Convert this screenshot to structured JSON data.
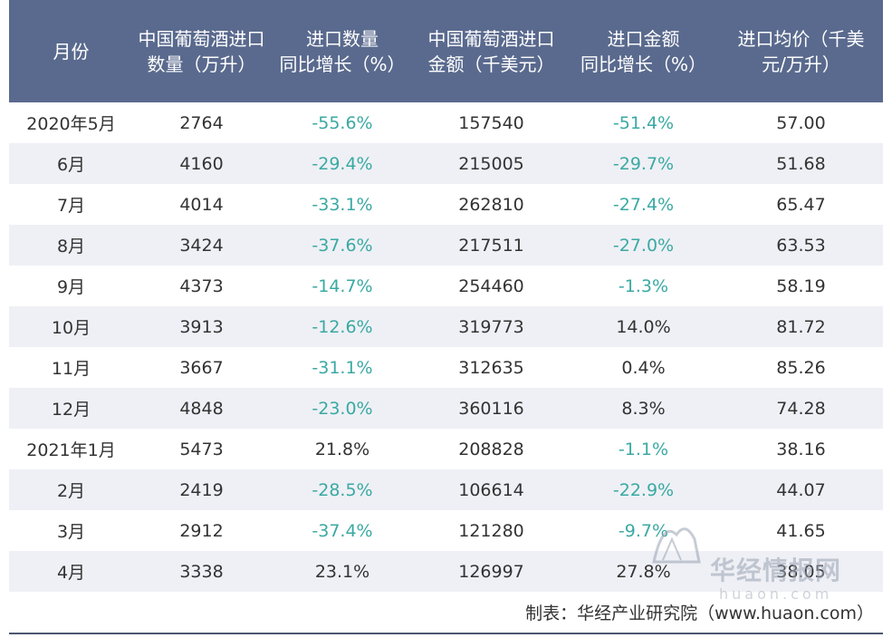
{
  "headers": [
    "月份",
    "中国葡萄酒进口\n数量（万升）",
    "进口数量\n同比增长（%）",
    "中国葡萄酒进口\n金额（千美元）",
    "进口金额\n同比增长（%）",
    "进口均价（千美\n元/万升）"
  ],
  "rows": [
    {
      "month": "2020年5月",
      "qty": "2764",
      "qty_yoy": "-55.6%",
      "amt": "157540",
      "amt_yoy": "-51.4%",
      "price": "57.00"
    },
    {
      "month": "6月",
      "qty": "4160",
      "qty_yoy": "-29.4%",
      "amt": "215005",
      "amt_yoy": "-29.7%",
      "price": "51.68"
    },
    {
      "month": "7月",
      "qty": "4014",
      "qty_yoy": "-33.1%",
      "amt": "262810",
      "amt_yoy": "-27.4%",
      "price": "65.47"
    },
    {
      "month": "8月",
      "qty": "3424",
      "qty_yoy": "-37.6%",
      "amt": "217511",
      "amt_yoy": "-27.0%",
      "price": "63.53"
    },
    {
      "month": "9月",
      "qty": "4373",
      "qty_yoy": "-14.7%",
      "amt": "254460",
      "amt_yoy": "-1.3%",
      "price": "58.19"
    },
    {
      "month": "10月",
      "qty": "3913",
      "qty_yoy": "-12.6%",
      "amt": "319773",
      "amt_yoy": "14.0%",
      "price": "81.72"
    },
    {
      "month": "11月",
      "qty": "3667",
      "qty_yoy": "-31.1%",
      "amt": "312635",
      "amt_yoy": "0.4%",
      "price": "85.26"
    },
    {
      "month": "12月",
      "qty": "4848",
      "qty_yoy": "-23.0%",
      "amt": "360116",
      "amt_yoy": "8.3%",
      "price": "74.28"
    },
    {
      "month": "2021年1月",
      "qty": "5473",
      "qty_yoy": "21.8%",
      "amt": "208828",
      "amt_yoy": "-1.1%",
      "price": "38.16"
    },
    {
      "month": "2月",
      "qty": "2419",
      "qty_yoy": "-28.5%",
      "amt": "106614",
      "amt_yoy": "-22.9%",
      "price": "44.07"
    },
    {
      "month": "3月",
      "qty": "2912",
      "qty_yoy": "-37.4%",
      "amt": "121280",
      "amt_yoy": "-9.7%",
      "price": "41.65"
    },
    {
      "month": "4月",
      "qty": "3338",
      "qty_yoy": "23.1%",
      "amt": "126997",
      "amt_yoy": "27.8%",
      "price": "38.05"
    }
  ],
  "footer": "制表：华经产业研究院（www.huaon.com）",
  "watermark": {
    "name": "华经情报网",
    "url": "huaon.com"
  },
  "colors": {
    "header_bg": "#5a6a8e",
    "negative": "#3aa9a3",
    "stripe": "#eef0f5"
  }
}
